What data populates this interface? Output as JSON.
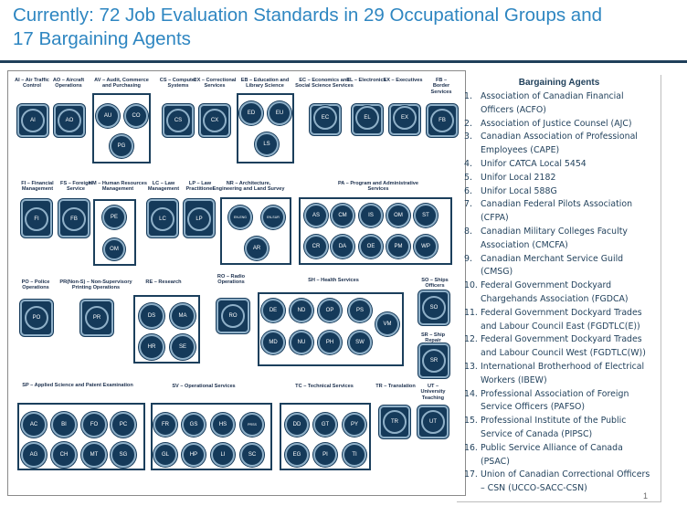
{
  "title": {
    "line1": "Currently: 72 Job Evaluation Standards in 29 Occupational Groups and",
    "line2": "17 Bargaining Agents"
  },
  "groups": {
    "ai": {
      "label": "AI – Air Traffic\nControl",
      "members": [
        "AI"
      ]
    },
    "ao": {
      "label": "AO – Aircraft\nOperations",
      "members": [
        "AO"
      ]
    },
    "av": {
      "label": "AV – Audit, Commerce\nand Purchasing",
      "members": [
        "AU",
        "CO",
        "PG"
      ]
    },
    "cs": {
      "label": "CS – Computer\nSystems",
      "members": [
        "CS"
      ]
    },
    "cx": {
      "label": "CX – Correctional\nServices",
      "members": [
        "CX"
      ]
    },
    "eb": {
      "label": "EB – Education and\nLibrary Science",
      "members": [
        "ED",
        "EU",
        "LS"
      ]
    },
    "ec": {
      "label": "EC – Economics and\nSocial Science Services",
      "members": [
        "EC"
      ]
    },
    "el": {
      "label": "EL – Electronics",
      "members": [
        "EL"
      ]
    },
    "ex": {
      "label": "EX – Executives",
      "members": [
        "EX"
      ]
    },
    "fb": {
      "label": "FB – Border\nServices",
      "members": [
        "FB"
      ]
    },
    "fi": {
      "label": "FI – Financial\nManagement",
      "members": [
        "FI"
      ]
    },
    "fs": {
      "label": "FS – Foreign\nService",
      "members": [
        "FB"
      ]
    },
    "hm": {
      "label": "HM – Human Resources\nManagement",
      "members": [
        "PE",
        "OM"
      ]
    },
    "lc": {
      "label": "LC – Law\nManagement",
      "members": [
        "LC"
      ]
    },
    "lp": {
      "label": "LP – Law\nPractitioner",
      "members": [
        "LP"
      ]
    },
    "nr": {
      "label": "NR – Architecture,\nEngineering and Land Survey",
      "members": [
        "EN-ENG",
        "EN-SUR",
        "AR"
      ]
    },
    "pa": {
      "label": "PA – Program and Administrative Services",
      "members": [
        "AS",
        "CM",
        "IS",
        "OM",
        "ST",
        "CR",
        "DA",
        "OE",
        "PM",
        "WP"
      ]
    },
    "po": {
      "label": "PO – Police\nOperations",
      "members": [
        "PO"
      ]
    },
    "pr": {
      "label": "PR(Non-S) – Non-Supervisory\nPrinting Operations",
      "members": [
        "PR"
      ]
    },
    "re": {
      "label": "RE – Research",
      "members": [
        "DS",
        "MA",
        "HR",
        "SE"
      ]
    },
    "ro": {
      "label": "RO – Radio\nOperations",
      "members": [
        "RO"
      ]
    },
    "sh": {
      "label": "SH – Health Services",
      "members": [
        "DE",
        "ND",
        "OP",
        "PS",
        "VM",
        "MD",
        "NU",
        "PH",
        "SW"
      ]
    },
    "so": {
      "label": "SO – Ships Officers",
      "members": [
        "SO"
      ]
    },
    "sr": {
      "label": "SR – Ship Repair",
      "members": [
        "SR"
      ]
    },
    "sp": {
      "label": "SP – Applied Science and Patent Examination",
      "members": [
        "AC",
        "BI",
        "FO",
        "PC",
        "AG",
        "CH",
        "MT",
        "SG"
      ]
    },
    "sv": {
      "label": "SV – Operational Services",
      "members": [
        "FR",
        "GS",
        "HS",
        "PRSS",
        "GL",
        "HP",
        "LI",
        "SC"
      ]
    },
    "tc": {
      "label": "TC – Technical Services",
      "members": [
        "DD",
        "GT",
        "PY",
        "EG",
        "PI",
        "TI"
      ]
    },
    "tr": {
      "label": "TR – Translation",
      "members": [
        "TR"
      ]
    },
    "ut": {
      "label": "UT – University\nTeaching",
      "members": [
        "UT"
      ]
    }
  },
  "bargaining_agents": {
    "title": "Bargaining Agents",
    "items": [
      {
        "num": "1.",
        "lines": [
          "Association of Canadian Financial",
          "Officers (ACFO)"
        ]
      },
      {
        "num": "2.",
        "lines": [
          "Association of Justice Counsel (AJC)"
        ]
      },
      {
        "num": "3.",
        "lines": [
          "Canadian Association of Professional",
          "Employees (CAPE)"
        ]
      },
      {
        "num": "4.",
        "lines": [
          "Unifor CATCA Local 5454"
        ]
      },
      {
        "num": "5.",
        "lines": [
          "Unifor Local 2182"
        ]
      },
      {
        "num": "6.",
        "lines": [
          "Unifor Local 588G"
        ]
      },
      {
        "num": "7.",
        "lines": [
          "Canadian Federal Pilots Association",
          "(CFPA)"
        ]
      },
      {
        "num": "8.",
        "lines": [
          "Canadian Military Colleges Faculty",
          "Association (CMCFA)"
        ]
      },
      {
        "num": "9.",
        "lines": [
          "Canadian Merchant Service Guild",
          "(CMSG)"
        ]
      },
      {
        "num": "10.",
        "lines": [
          "Federal Government Dockyard",
          "Chargehands Association (FGDCA)"
        ]
      },
      {
        "num": "11.",
        "lines": [
          "Federal Government Dockyard Trades",
          "and Labour Council East (FGDTLC(E))"
        ]
      },
      {
        "num": "12.",
        "lines": [
          "Federal Government Dockyard Trades",
          "and Labour Council West (FGDTLC(W))"
        ]
      },
      {
        "num": "13.",
        "lines": [
          "International Brotherhood of Electrical",
          "Workers (IBEW)"
        ]
      },
      {
        "num": "14.",
        "lines": [
          "Professional Association of Foreign",
          "Service Officers (PAFSO)"
        ]
      },
      {
        "num": "15.",
        "lines": [
          "Professional Institute of the Public",
          "Service of Canada (PIPSC)"
        ]
      },
      {
        "num": "16.",
        "lines": [
          "Public Service Alliance of Canada",
          "(PSAC)"
        ]
      },
      {
        "num": "17.",
        "lines": [
          "Union of Canadian Correctional Officers",
          "– CSN (UCCO-SACC-CSN)"
        ]
      }
    ]
  },
  "page_number": "1",
  "colors": {
    "title": "#2e86c1",
    "circle_fill": "#153a5a",
    "box_border": "#1b3f5c",
    "legend_text": "#1f3f5a"
  }
}
